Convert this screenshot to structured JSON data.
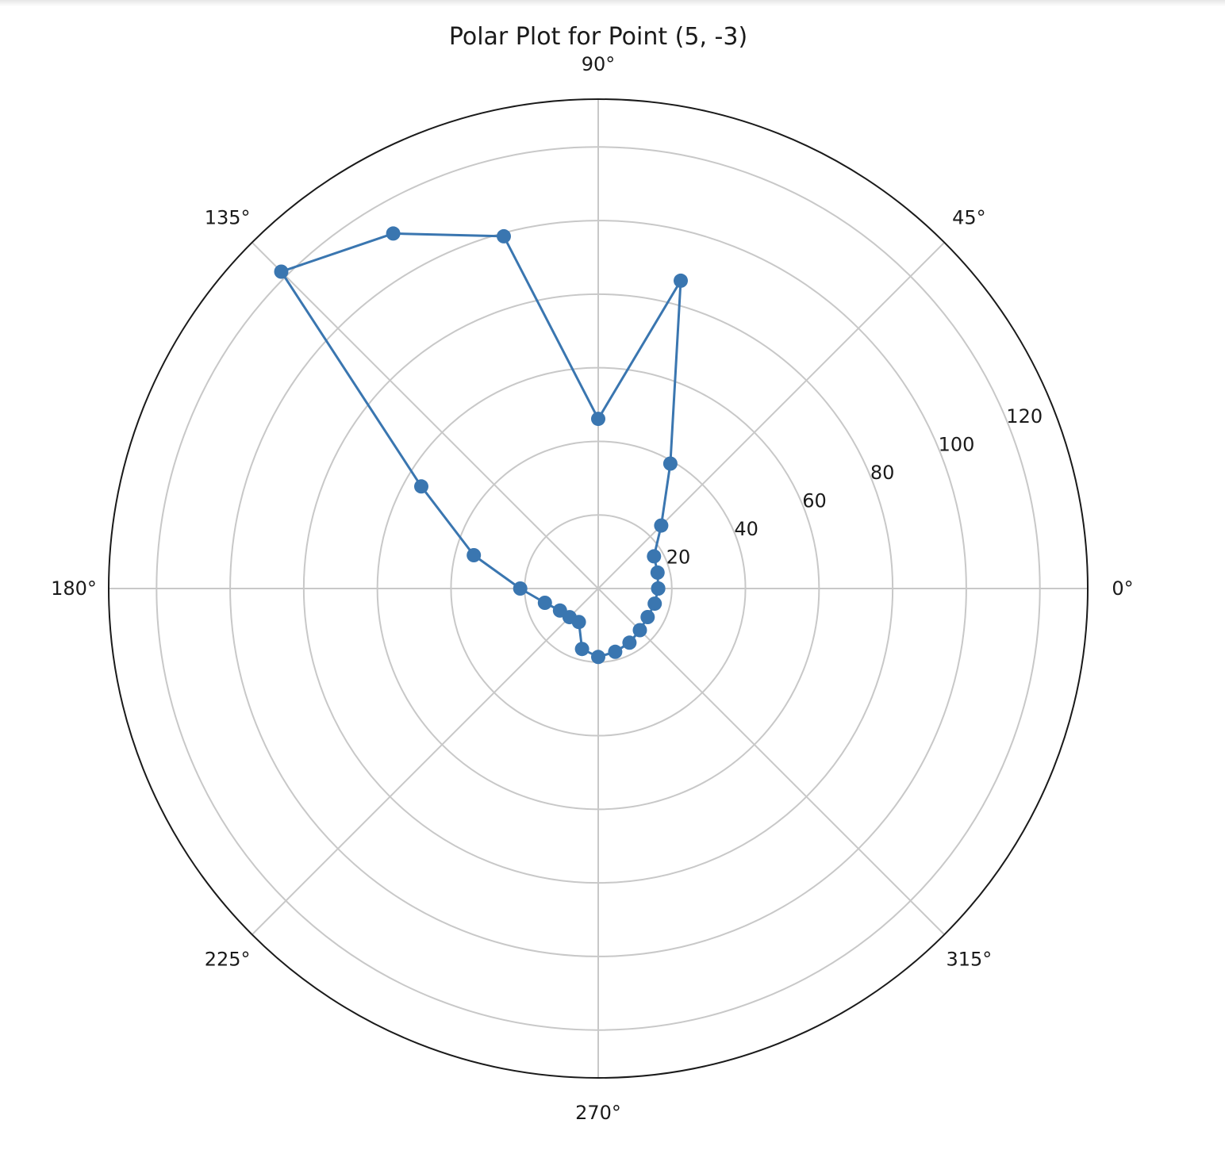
{
  "chart_data": {
    "type": "line",
    "subtype": "polar",
    "title": "Polar Plot for Point (5, -3)",
    "angle_unit": "degrees",
    "r_max": 133,
    "theta_ticks": [
      {
        "value": 0,
        "label": "0°"
      },
      {
        "value": 45,
        "label": "45°"
      },
      {
        "value": 90,
        "label": "90°"
      },
      {
        "value": 135,
        "label": "135°"
      },
      {
        "value": 180,
        "label": "180°"
      },
      {
        "value": 225,
        "label": "225°"
      },
      {
        "value": 270,
        "label": "270°"
      },
      {
        "value": 315,
        "label": "315°"
      }
    ],
    "r_ticks": [
      {
        "value": 20,
        "label": "20"
      },
      {
        "value": 40,
        "label": "40"
      },
      {
        "value": 60,
        "label": "60"
      },
      {
        "value": 80,
        "label": "80"
      },
      {
        "value": 100,
        "label": "100"
      },
      {
        "value": 120,
        "label": "120"
      }
    ],
    "r_gridlines": [
      20,
      40,
      60,
      80,
      100,
      120
    ],
    "r_label_angle": 22.5,
    "grid": true,
    "line_color": "#3a76b0",
    "series": [
      {
        "theta": [
          0,
          15,
          30,
          45,
          60,
          75,
          90,
          105,
          120,
          135,
          150,
          165,
          180,
          195,
          210,
          225,
          240,
          255,
          270,
          285,
          300,
          315,
          330,
          345,
          360
        ],
        "r": [
          16.3,
          16.7,
          17.5,
          24.2,
          39.2,
          86.6,
          46.1,
          99.1,
          111.4,
          121.8,
          55.5,
          35.0,
          21.2,
          15.0,
          12.0,
          11.0,
          10.5,
          17.0,
          18.6,
          17.8,
          17.0,
          16.0,
          15.5,
          15.9,
          16.3
        ]
      }
    ]
  }
}
